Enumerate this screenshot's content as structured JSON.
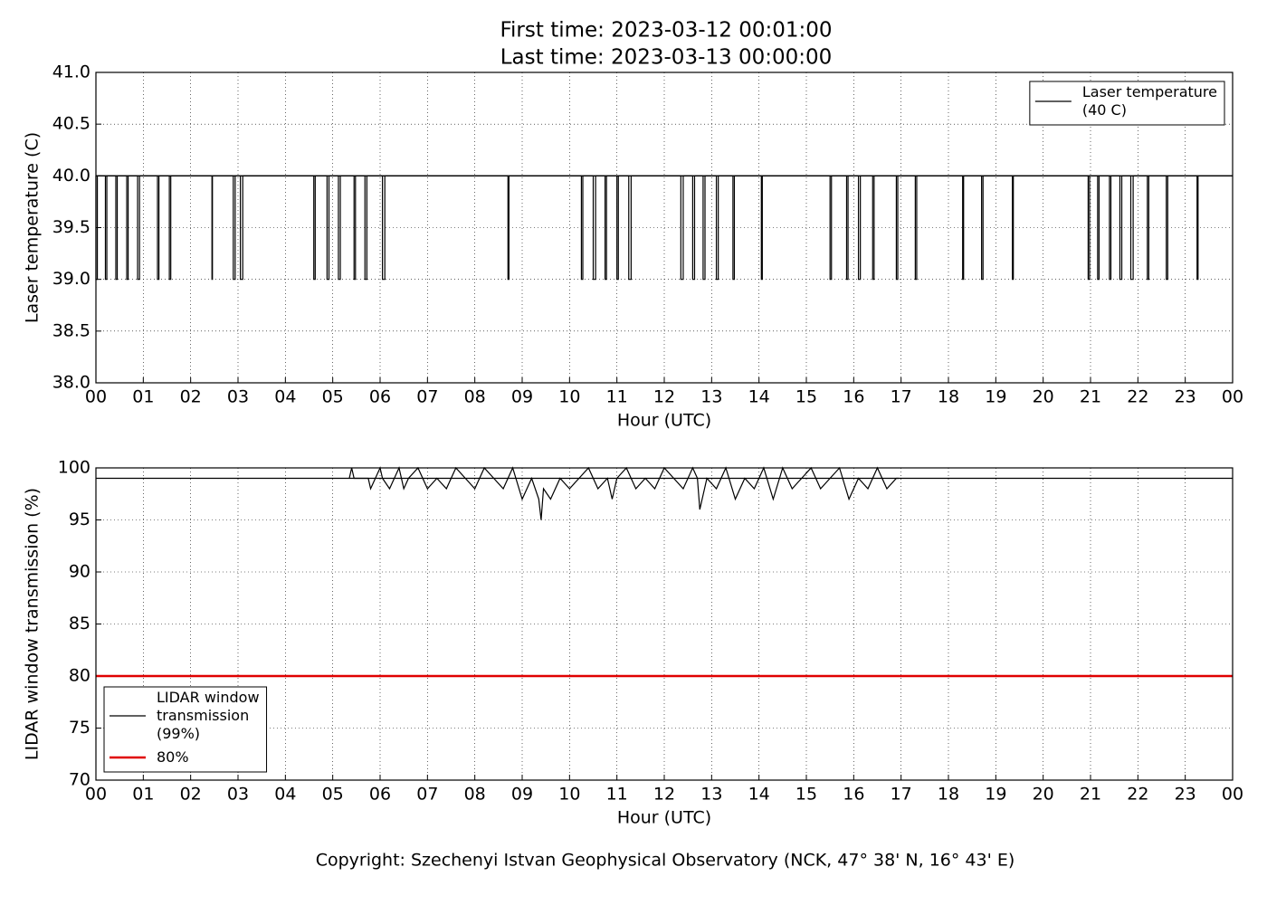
{
  "title": [
    "First time: 2023-03-12 00:01:00",
    "Last time: 2023-03-13 00:00:00"
  ],
  "footer": "Copyright: Szechenyi Istvan Geophysical Observatory (NCK, 47° 38' N, 16° 43' E)",
  "chart_data": [
    {
      "type": "line",
      "xlabel": "Hour (UTC)",
      "ylabel": "Laser temperature (C)",
      "xlim": [
        0,
        24
      ],
      "ylim": [
        38,
        41
      ],
      "grid": true,
      "legend": "upper right",
      "xticks": [
        {
          "value": 0,
          "label": "00"
        },
        {
          "value": 1,
          "label": "01"
        },
        {
          "value": 2,
          "label": "02"
        },
        {
          "value": 3,
          "label": "03"
        },
        {
          "value": 4,
          "label": "04"
        },
        {
          "value": 5,
          "label": "05"
        },
        {
          "value": 6,
          "label": "06"
        },
        {
          "value": 7,
          "label": "07"
        },
        {
          "value": 8,
          "label": "08"
        },
        {
          "value": 9,
          "label": "09"
        },
        10,
        11,
        12,
        13,
        14,
        15,
        16,
        17,
        18,
        19,
        20,
        21,
        22,
        23,
        {
          "value": 24,
          "label": "00"
        }
      ],
      "yticks": [
        {
          "value": 38,
          "label": "38.0"
        },
        38.5,
        {
          "value": 39,
          "label": "39.0"
        },
        39.5,
        {
          "value": 40,
          "label": "40.0"
        },
        40.5,
        {
          "value": 41,
          "label": "41.0"
        }
      ],
      "series": [
        {
          "name": "Laser temperature\n(40 C)",
          "color": "#000000",
          "x": [
            0,
            0,
            0.03,
            0.03,
            0.2,
            0.2,
            0.23,
            0.23,
            0.42,
            0.42,
            0.45,
            0.45,
            0.65,
            0.65,
            0.68,
            0.68,
            0.88,
            0.88,
            0.92,
            0.92,
            1.3,
            1.3,
            1.33,
            1.33,
            1.55,
            1.55,
            1.58,
            1.58,
            2.45,
            2.45,
            2.46,
            2.46,
            2.9,
            2.9,
            2.94,
            2.94,
            3.05,
            3.05,
            3.1,
            3.1,
            4.6,
            4.6,
            4.63,
            4.63,
            4.88,
            4.88,
            4.92,
            4.92,
            5.12,
            5.12,
            5.16,
            5.16,
            5.45,
            5.45,
            5.48,
            5.48,
            5.68,
            5.68,
            5.72,
            5.72,
            6.05,
            6.05,
            6.1,
            6.1,
            8.7,
            8.7,
            8.72,
            8.72,
            10.25,
            10.25,
            10.28,
            10.28,
            10.5,
            10.5,
            10.55,
            10.55,
            10.75,
            10.75,
            10.78,
            10.78,
            11.0,
            11.0,
            11.03,
            11.03,
            11.25,
            11.25,
            11.3,
            11.3,
            12.35,
            12.35,
            12.4,
            12.4,
            12.6,
            12.6,
            12.64,
            12.64,
            12.82,
            12.82,
            12.86,
            12.86,
            13.1,
            13.1,
            13.14,
            13.14,
            13.45,
            13.45,
            13.48,
            13.48,
            14.05,
            14.05,
            14.07,
            14.07,
            15.5,
            15.5,
            15.53,
            15.53,
            15.85,
            15.85,
            15.88,
            15.88,
            16.1,
            16.1,
            16.14,
            16.14,
            16.4,
            16.4,
            16.43,
            16.43,
            16.9,
            16.9,
            16.93,
            16.93,
            17.3,
            17.3,
            17.33,
            17.33,
            18.3,
            18.3,
            18.32,
            18.32,
            18.7,
            18.7,
            18.73,
            18.73,
            19.35,
            19.35,
            19.37,
            19.37,
            20.95,
            20.95,
            20.98,
            20.98,
            21.15,
            21.15,
            21.18,
            21.18,
            21.4,
            21.4,
            21.43,
            21.43,
            21.62,
            21.62,
            21.66,
            21.66,
            21.85,
            21.85,
            21.9,
            21.9,
            22.2,
            22.2,
            22.23,
            22.23,
            22.6,
            22.6,
            22.63,
            22.63,
            23.25,
            23.25,
            23.27,
            23.27,
            24
          ],
          "values": [
            40,
            39,
            39,
            40,
            40,
            39,
            39,
            40,
            40,
            39,
            39,
            40,
            40,
            39,
            39,
            40,
            40,
            39,
            39,
            40,
            40,
            39,
            39,
            40,
            40,
            39,
            39,
            40,
            40,
            39,
            39,
            40,
            40,
            39,
            39,
            40,
            40,
            39,
            39,
            40,
            40,
            39,
            39,
            40,
            40,
            39,
            39,
            40,
            40,
            39,
            39,
            40,
            40,
            39,
            39,
            40,
            40,
            39,
            39,
            40,
            40,
            39,
            39,
            40,
            40,
            39,
            39,
            40,
            40,
            39,
            39,
            40,
            40,
            39,
            39,
            40,
            40,
            39,
            39,
            40,
            40,
            39,
            39,
            40,
            40,
            39,
            39,
            40,
            40,
            39,
            39,
            40,
            40,
            39,
            39,
            40,
            40,
            39,
            39,
            40,
            40,
            39,
            39,
            40,
            40,
            39,
            39,
            40,
            40,
            39,
            39,
            40,
            40,
            39,
            39,
            40,
            40,
            39,
            39,
            40,
            40,
            39,
            39,
            40,
            40,
            39,
            39,
            40,
            40,
            39,
            39,
            40,
            40,
            39,
            39,
            40,
            40,
            39,
            39,
            40,
            40,
            39,
            39,
            40,
            40,
            39,
            39,
            40,
            40,
            39,
            39,
            40,
            40,
            39,
            39,
            40,
            40,
            39,
            39,
            40,
            40,
            39,
            39,
            40,
            40,
            39,
            39,
            40,
            40,
            39,
            39,
            40,
            40,
            39,
            39,
            40,
            40,
            39,
            39,
            40,
            40
          ]
        }
      ],
      "reference_lines": [
        {
          "value": 40,
          "color": "#000000"
        }
      ]
    },
    {
      "type": "line",
      "xlabel": "Hour (UTC)",
      "ylabel": "LIDAR window transmission (%)",
      "xlim": [
        0,
        24
      ],
      "ylim": [
        70,
        100
      ],
      "grid": true,
      "legend": "lower left",
      "xticks": [
        {
          "value": 0,
          "label": "00"
        },
        {
          "value": 1,
          "label": "01"
        },
        {
          "value": 2,
          "label": "02"
        },
        {
          "value": 3,
          "label": "03"
        },
        {
          "value": 4,
          "label": "04"
        },
        {
          "value": 5,
          "label": "05"
        },
        {
          "value": 6,
          "label": "06"
        },
        {
          "value": 7,
          "label": "07"
        },
        {
          "value": 8,
          "label": "08"
        },
        {
          "value": 9,
          "label": "09"
        },
        10,
        11,
        12,
        13,
        14,
        15,
        16,
        17,
        18,
        19,
        20,
        21,
        22,
        23,
        {
          "value": 24,
          "label": "00"
        }
      ],
      "yticks": [
        70,
        75,
        80,
        85,
        90,
        95,
        100
      ],
      "series": [
        {
          "name": "LIDAR window\ntransmission\n(99%)",
          "color": "#000000",
          "x": [
            5.35,
            5.4,
            5.45,
            5.75,
            5.8,
            6.0,
            6.05,
            6.2,
            6.3,
            6.4,
            6.5,
            6.6,
            6.8,
            7.0,
            7.2,
            7.4,
            7.6,
            7.8,
            8.0,
            8.2,
            8.4,
            8.6,
            8.8,
            9.0,
            9.2,
            9.35,
            9.4,
            9.45,
            9.6,
            9.8,
            10.0,
            10.2,
            10.4,
            10.6,
            10.8,
            10.9,
            11.0,
            11.2,
            11.4,
            11.6,
            11.8,
            12.0,
            12.2,
            12.4,
            12.6,
            12.7,
            12.75,
            12.9,
            13.1,
            13.3,
            13.5,
            13.7,
            13.9,
            14.1,
            14.3,
            14.5,
            14.7,
            14.9,
            15.1,
            15.3,
            15.5,
            15.7,
            15.9,
            16.1,
            16.3,
            16.5,
            16.7,
            16.9,
            16.95
          ],
          "values": [
            99,
            100,
            99,
            99,
            98,
            100,
            99,
            98,
            99,
            100,
            98,
            99,
            100,
            98,
            99,
            98,
            100,
            99,
            98,
            100,
            99,
            98,
            100,
            97,
            99,
            97,
            95,
            98,
            97,
            99,
            98,
            99,
            100,
            98,
            99,
            97,
            99,
            100,
            98,
            99,
            98,
            100,
            99,
            98,
            100,
            99,
            96,
            99,
            98,
            100,
            97,
            99,
            98,
            100,
            97,
            100,
            98,
            99,
            100,
            98,
            99,
            100,
            97,
            99,
            98,
            100,
            98,
            99,
            99
          ]
        }
      ],
      "reference_lines": [
        {
          "value": 99,
          "color": "#000000"
        },
        {
          "name": "80%",
          "value": 80,
          "color": "#e00000"
        }
      ]
    }
  ]
}
